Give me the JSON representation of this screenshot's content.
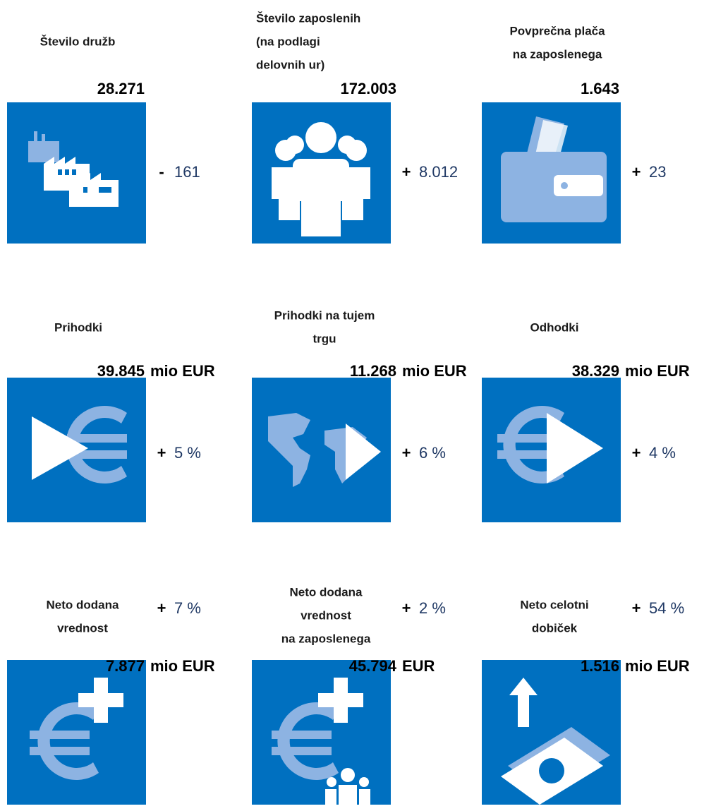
{
  "cards": [
    {
      "title": [
        "Število družb"
      ],
      "value": "28.271",
      "sign": "-",
      "change": "161"
    },
    {
      "title": [
        "Število zaposlenih",
        "(na podlagi",
        "delovnih ur)"
      ],
      "value": "172.003",
      "sign": "+",
      "change": "8.012"
    },
    {
      "title": [
        "Povprečna plača",
        "na zaposlenega"
      ],
      "value": "1.643",
      "sign": "+",
      "change": "23"
    },
    {
      "title": [
        "Prihodki"
      ],
      "value": "39.845",
      "unit": "mio EUR",
      "sign": "+",
      "change": "5 %"
    },
    {
      "title": [
        "Prihodki na tujem",
        "trgu"
      ],
      "value": "11.268",
      "unit": "mio EUR",
      "sign": "+",
      "change": "6 %"
    },
    {
      "title": [
        "Odhodki"
      ],
      "value": "38.329",
      "unit": "mio EUR",
      "sign": "+",
      "change": "4 %"
    },
    {
      "title": [
        "Neto dodana",
        "vrednost"
      ],
      "value": "7.877",
      "unit": "mio EUR",
      "sign": "+",
      "change": "7 %"
    },
    {
      "title": [
        "Neto dodana",
        "vrednost",
        "na zaposlenega"
      ],
      "value": "45.794",
      "unit": "EUR",
      "sign": "+",
      "change": "2 %"
    },
    {
      "title": [
        "Neto celotni",
        "dobiček"
      ],
      "value": "1.516",
      "unit": "mio EUR",
      "sign": "+",
      "change": "54 %"
    }
  ]
}
